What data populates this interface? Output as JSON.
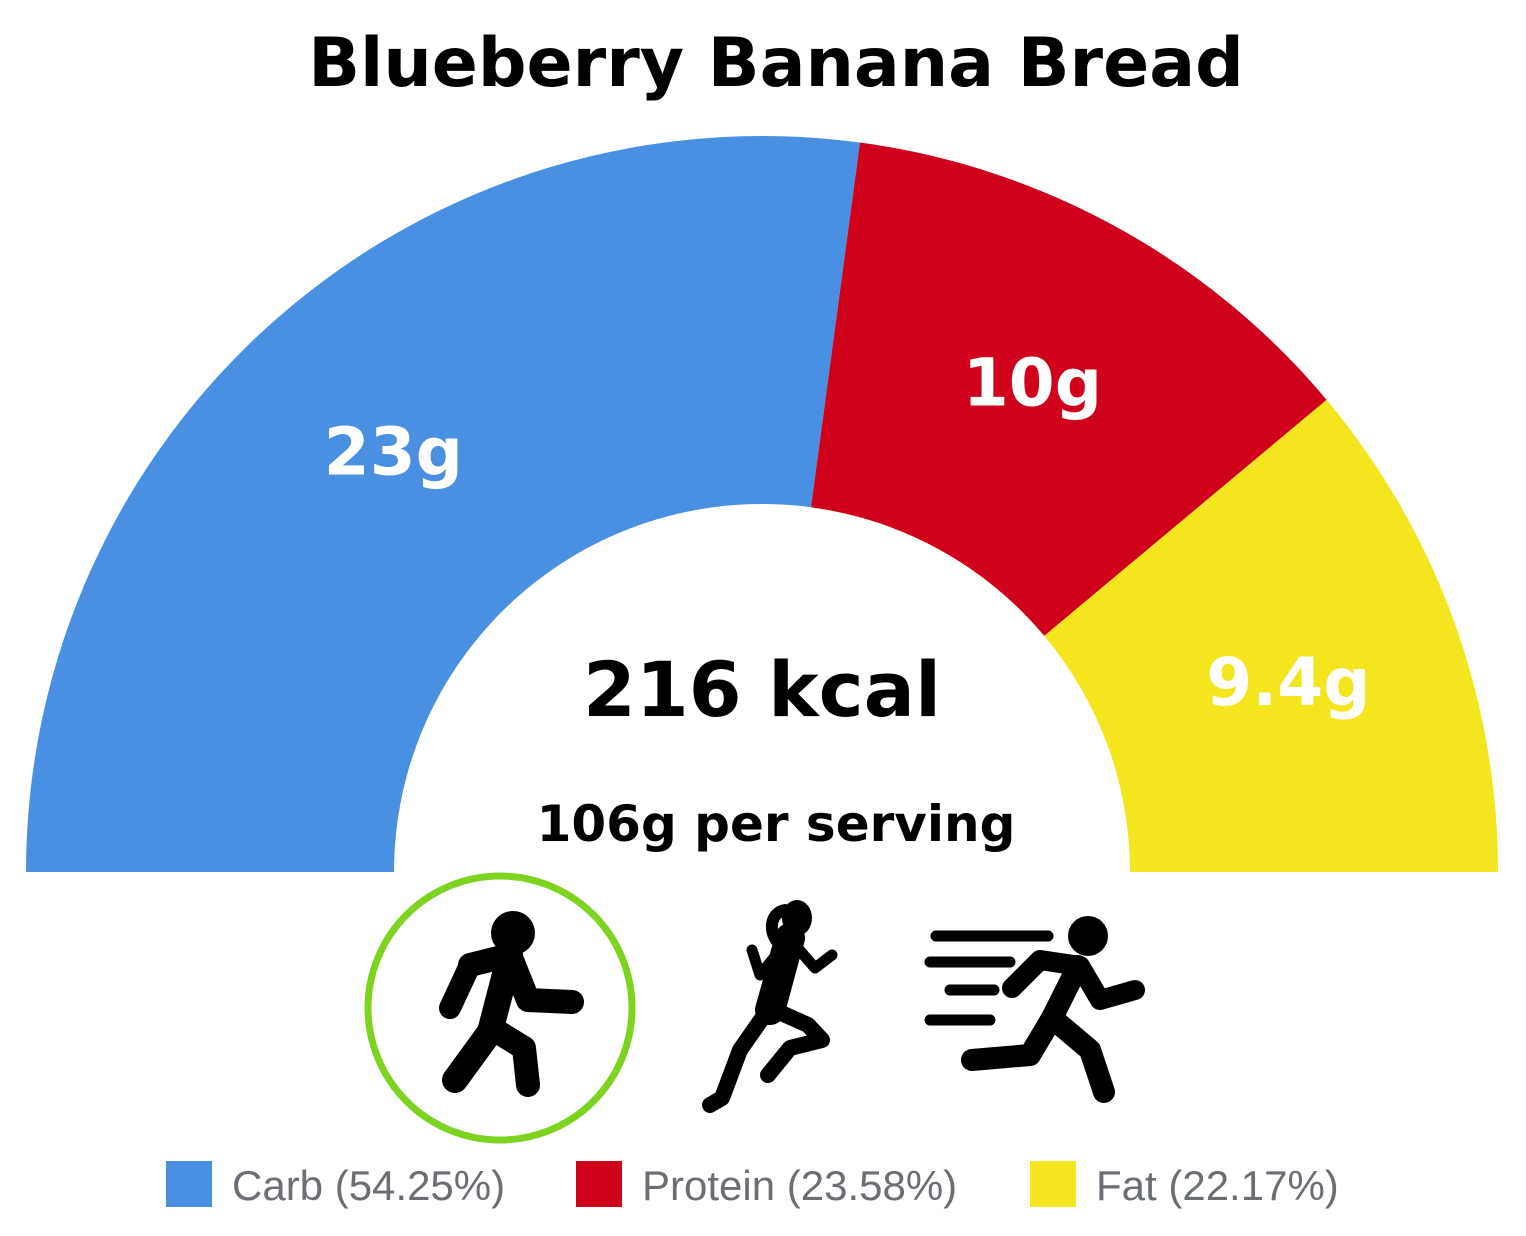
{
  "chart_data": {
    "type": "pie",
    "title": "Blueberry Banana Bread",
    "center_text": "216 kcal",
    "subtitle": "106g per serving",
    "series": [
      {
        "name": "Carb",
        "value": 23,
        "value_label": "23g",
        "percent": 54.25,
        "legend_label": "Carb (54.25%)",
        "color": "#4a90e2"
      },
      {
        "name": "Protein",
        "value": 10,
        "value_label": "10g",
        "percent": 23.58,
        "legend_label": "Protein (23.58%)",
        "color": "#d0021b"
      },
      {
        "name": "Fat",
        "value": 9.4,
        "value_label": "9.4g",
        "percent": 22.17,
        "legend_label": "Fat (22.17%)",
        "color": "#f5e51e"
      }
    ],
    "legend_position": "bottom",
    "activities": [
      {
        "icon": "walking-person-icon",
        "selected": true
      },
      {
        "icon": "jogging-woman-icon",
        "selected": false
      },
      {
        "icon": "sprinting-person-icon",
        "selected": false
      }
    ],
    "selected_ring_color": "#7ed321"
  }
}
